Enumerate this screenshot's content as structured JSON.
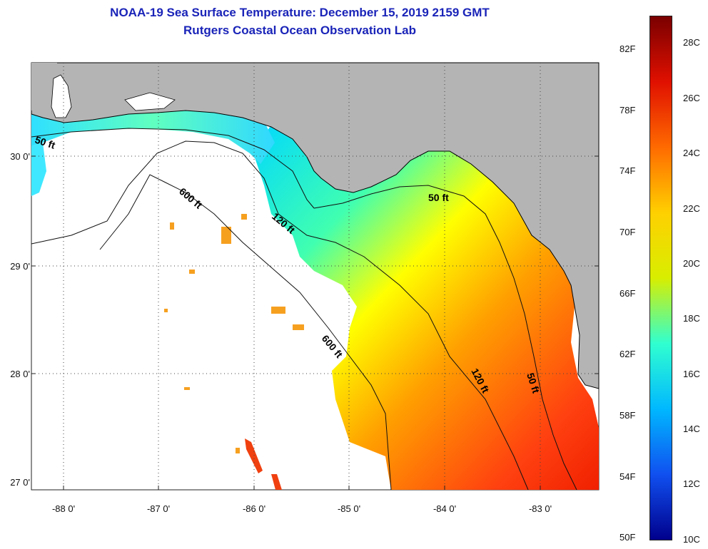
{
  "header": {
    "title": "NOAA-19 Sea Surface Temperature:  December 15, 2019 2159 GMT",
    "subtitle": "Rutgers Coastal Ocean Observation Lab"
  },
  "map": {
    "latitude_labels": [
      "30 0'",
      "29 0'",
      "28 0'",
      "27 0'"
    ],
    "longitude_labels": [
      "-88 0'",
      "-87 0'",
      "-86 0'",
      "-85 0'",
      "-84 0'",
      "-83 0'"
    ],
    "contour_labels": [
      "50 ft",
      "50 ft",
      "50 ft",
      "120 ft",
      "120 ft",
      "600 ft",
      "600 ft"
    ],
    "colors": {
      "land": "#b4b4b4",
      "cloud": "#ffffff",
      "contour": "#111111",
      "coast": "#000000"
    }
  },
  "colorbar": {
    "fahrenheit_labels": [
      "82F",
      "78F",
      "74F",
      "70F",
      "66F",
      "62F",
      "58F",
      "54F",
      "50F"
    ],
    "celsius_labels": [
      "28C",
      "26C",
      "24C",
      "22C",
      "20C",
      "18C",
      "16C",
      "14C",
      "12C",
      "10C"
    ],
    "gradient_colors": [
      "#7a0000",
      "#e01000",
      "#ff6a00",
      "#ffd000",
      "#d8ee00",
      "#30ffd0",
      "#00b8ff",
      "#1050f0",
      "#00008c"
    ]
  }
}
